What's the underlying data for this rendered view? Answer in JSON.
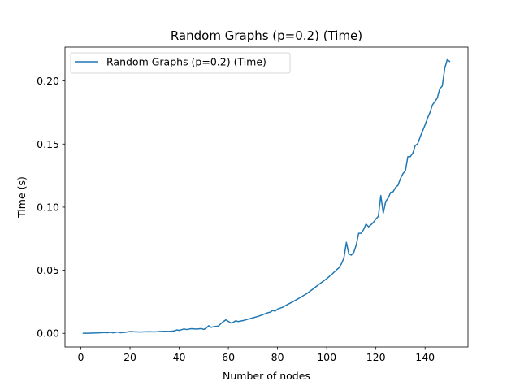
{
  "chart_data": {
    "type": "line",
    "title": "Random Graphs (p=0.2) (Time)",
    "xlabel": "Number of nodes",
    "ylabel": "Time (s)",
    "xlim": [
      -6.45,
      157.45
    ],
    "ylim": [
      -0.0108,
      0.2268
    ],
    "xticks": [
      0,
      20,
      40,
      60,
      80,
      100,
      120,
      140
    ],
    "yticks": [
      0.0,
      0.05,
      0.1,
      0.15,
      0.2
    ],
    "ytick_labels": [
      "0.00",
      "0.05",
      "0.10",
      "0.15",
      "0.20"
    ],
    "grid": false,
    "legend_position": "top-left",
    "series": [
      {
        "name": "Random Graphs (p=0.2) (Time)",
        "color": "#1f77b4",
        "points": [
          [
            1,
            0.0001
          ],
          [
            3,
            0.0001
          ],
          [
            5,
            0.0002
          ],
          [
            7,
            0.0003
          ],
          [
            9,
            0.0006
          ],
          [
            11,
            0.0005
          ],
          [
            12,
            0.0009
          ],
          [
            13,
            0.0004
          ],
          [
            15,
            0.001
          ],
          [
            16,
            0.0005
          ],
          [
            18,
            0.0008
          ],
          [
            20,
            0.0014
          ],
          [
            22,
            0.0012
          ],
          [
            24,
            0.001
          ],
          [
            26,
            0.0012
          ],
          [
            28,
            0.0013
          ],
          [
            30,
            0.0011
          ],
          [
            32,
            0.0014
          ],
          [
            34,
            0.0016
          ],
          [
            36,
            0.0015
          ],
          [
            38,
            0.0019
          ],
          [
            39,
            0.0027
          ],
          [
            40,
            0.0023
          ],
          [
            41,
            0.0029
          ],
          [
            42,
            0.0035
          ],
          [
            43,
            0.003
          ],
          [
            45,
            0.0037
          ],
          [
            47,
            0.0034
          ],
          [
            49,
            0.0038
          ],
          [
            50,
            0.0031
          ],
          [
            51,
            0.0042
          ],
          [
            52,
            0.006
          ],
          [
            53,
            0.0047
          ],
          [
            54,
            0.0053
          ],
          [
            56,
            0.0058
          ],
          [
            57,
            0.0078
          ],
          [
            58,
            0.0093
          ],
          [
            59,
            0.0107
          ],
          [
            60,
            0.0095
          ],
          [
            61,
            0.0082
          ],
          [
            62,
            0.0087
          ],
          [
            63,
            0.01
          ],
          [
            64,
            0.0093
          ],
          [
            66,
            0.0101
          ],
          [
            68,
            0.0112
          ],
          [
            70,
            0.0123
          ],
          [
            72,
            0.0134
          ],
          [
            74,
            0.0148
          ],
          [
            76,
            0.0163
          ],
          [
            77,
            0.0167
          ],
          [
            78,
            0.0181
          ],
          [
            79,
            0.0176
          ],
          [
            80,
            0.0192
          ],
          [
            82,
            0.0206
          ],
          [
            84,
            0.0228
          ],
          [
            86,
            0.0248
          ],
          [
            88,
            0.027
          ],
          [
            90,
            0.0293
          ],
          [
            92,
            0.0316
          ],
          [
            94,
            0.0345
          ],
          [
            96,
            0.0375
          ],
          [
            98,
            0.0405
          ],
          [
            100,
            0.0433
          ],
          [
            102,
            0.0466
          ],
          [
            104,
            0.0503
          ],
          [
            105,
            0.052
          ],
          [
            106,
            0.0552
          ],
          [
            107,
            0.0598
          ],
          [
            108,
            0.0721
          ],
          [
            109,
            0.0629
          ],
          [
            110,
            0.062
          ],
          [
            111,
            0.0641
          ],
          [
            112,
            0.07
          ],
          [
            113,
            0.0793
          ],
          [
            114,
            0.0793
          ],
          [
            115,
            0.0822
          ],
          [
            116,
            0.0866
          ],
          [
            117,
            0.0844
          ],
          [
            118,
            0.086
          ],
          [
            119,
            0.088
          ],
          [
            120,
            0.0906
          ],
          [
            121,
            0.0927
          ],
          [
            122,
            0.1092
          ],
          [
            123,
            0.0953
          ],
          [
            124,
            0.1045
          ],
          [
            125,
            0.1072
          ],
          [
            126,
            0.1117
          ],
          [
            127,
            0.1122
          ],
          [
            128,
            0.1156
          ],
          [
            129,
            0.1173
          ],
          [
            130,
            0.1227
          ],
          [
            131,
            0.1265
          ],
          [
            132,
            0.1288
          ],
          [
            133,
            0.14
          ],
          [
            134,
            0.14
          ],
          [
            135,
            0.1427
          ],
          [
            136,
            0.1488
          ],
          [
            137,
            0.1502
          ],
          [
            138,
            0.1556
          ],
          [
            139,
            0.1604
          ],
          [
            140,
            0.1651
          ],
          [
            141,
            0.1704
          ],
          [
            142,
            0.175
          ],
          [
            143,
            0.181
          ],
          [
            144,
            0.1837
          ],
          [
            145,
            0.1866
          ],
          [
            146,
            0.1939
          ],
          [
            147,
            0.196
          ],
          [
            148,
            0.21
          ],
          [
            149,
            0.2168
          ],
          [
            150,
            0.2155
          ]
        ]
      }
    ]
  }
}
